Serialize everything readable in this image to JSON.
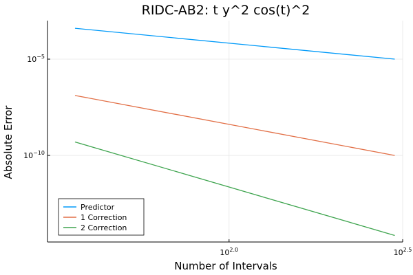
{
  "chart_data": {
    "type": "line",
    "title": "RIDC-AB2: t y^2 cos(t)^2",
    "xlabel": "Number of Intervals",
    "ylabel": "Absolute Error",
    "xscale": "log10",
    "yscale": "log10",
    "xlim": [
      30,
      316.2
    ],
    "ylim": [
      3.2e-15,
      0.001
    ],
    "grid": true,
    "legend_position": "bottom-left",
    "x_ticks": [
      {
        "value": 100,
        "base": "10",
        "exp": "2.0"
      },
      {
        "value": 316.2,
        "base": "10",
        "exp": "2.5"
      }
    ],
    "y_ticks": [
      {
        "value": 1e-05,
        "base": "10",
        "exp": "−5"
      },
      {
        "value": 1e-10,
        "base": "10",
        "exp": "−10"
      }
    ],
    "x": [
      36,
      300
    ],
    "series": [
      {
        "name": "Predictor",
        "color": "#009AF9",
        "values": [
          0.0004,
          1e-05
        ]
      },
      {
        "name": "1 Correction",
        "color": "#E26F46",
        "values": [
          1.3e-07,
          1e-10
        ]
      },
      {
        "name": "2 Correction",
        "color": "#3EA44E",
        "values": [
          5e-10,
          7e-15
        ]
      }
    ]
  }
}
